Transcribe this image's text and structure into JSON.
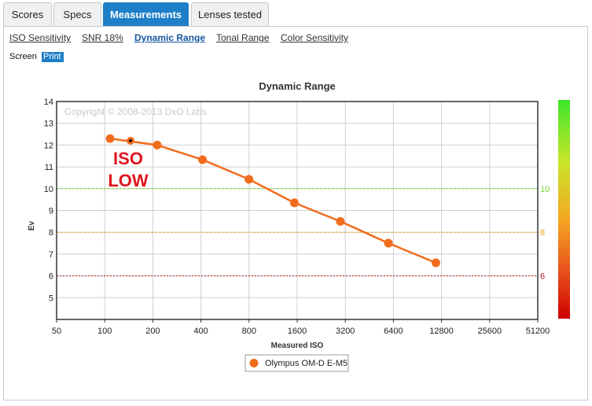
{
  "tabs": [
    {
      "label": "Scores",
      "active": false
    },
    {
      "label": "Specs",
      "active": false
    },
    {
      "label": "Measurements",
      "active": true
    },
    {
      "label": "Lenses tested",
      "active": false
    }
  ],
  "sublinks": [
    {
      "label": "ISO Sensitivity",
      "active": false
    },
    {
      "label": "SNR 18%",
      "active": false
    },
    {
      "label": "Dynamic Range",
      "active": true
    },
    {
      "label": "Tonal Range",
      "active": false
    },
    {
      "label": "Color Sensitivity",
      "active": false
    }
  ],
  "view_toggle": {
    "screen_label": "Screen",
    "print_label": "Print",
    "selected": "Print"
  },
  "annotation": {
    "line1": "ISO",
    "line2": "LOW",
    "color": "#e0141e"
  },
  "colors": {
    "accent": "#1e7fc8",
    "series": "#f26c1d"
  },
  "chart_data": {
    "type": "line",
    "title": "Dynamic Range",
    "watermark": "Copyright © 2008-2013 DxO Labs",
    "xlabel": "Measured ISO",
    "ylabel": "Ev",
    "x_scale": "log2",
    "x_ticks": [
      50,
      100,
      200,
      400,
      800,
      1600,
      3200,
      6400,
      12800,
      25600,
      51200
    ],
    "xlim": [
      50,
      51200
    ],
    "ylim": [
      4,
      14
    ],
    "y_ticks": [
      5,
      6,
      7,
      8,
      9,
      10,
      11,
      12,
      13,
      14
    ],
    "grid": true,
    "reference_lines": [
      {
        "value": 10,
        "label": "10",
        "color": "#7cd62a"
      },
      {
        "value": 8,
        "label": "8",
        "color": "#f0a21e"
      },
      {
        "value": 6,
        "label": "6",
        "color": "#b71c1c"
      }
    ],
    "color_scale": [
      "#3ee52a",
      "#c8e62a",
      "#f5a623",
      "#e8521c",
      "#cc0000"
    ],
    "legend_position": "bottom",
    "series": [
      {
        "name": "Olympus OM-D E-M5",
        "color": "#f26c1d",
        "x": [
          108,
          213,
          409,
          799,
          1538,
          2980,
          5960,
          11800
        ],
        "y": [
          12.3,
          12.0,
          11.33,
          10.43,
          9.35,
          8.5,
          7.5,
          6.6
        ],
        "low_point": {
          "x": 145,
          "y": 12.2
        }
      }
    ]
  }
}
